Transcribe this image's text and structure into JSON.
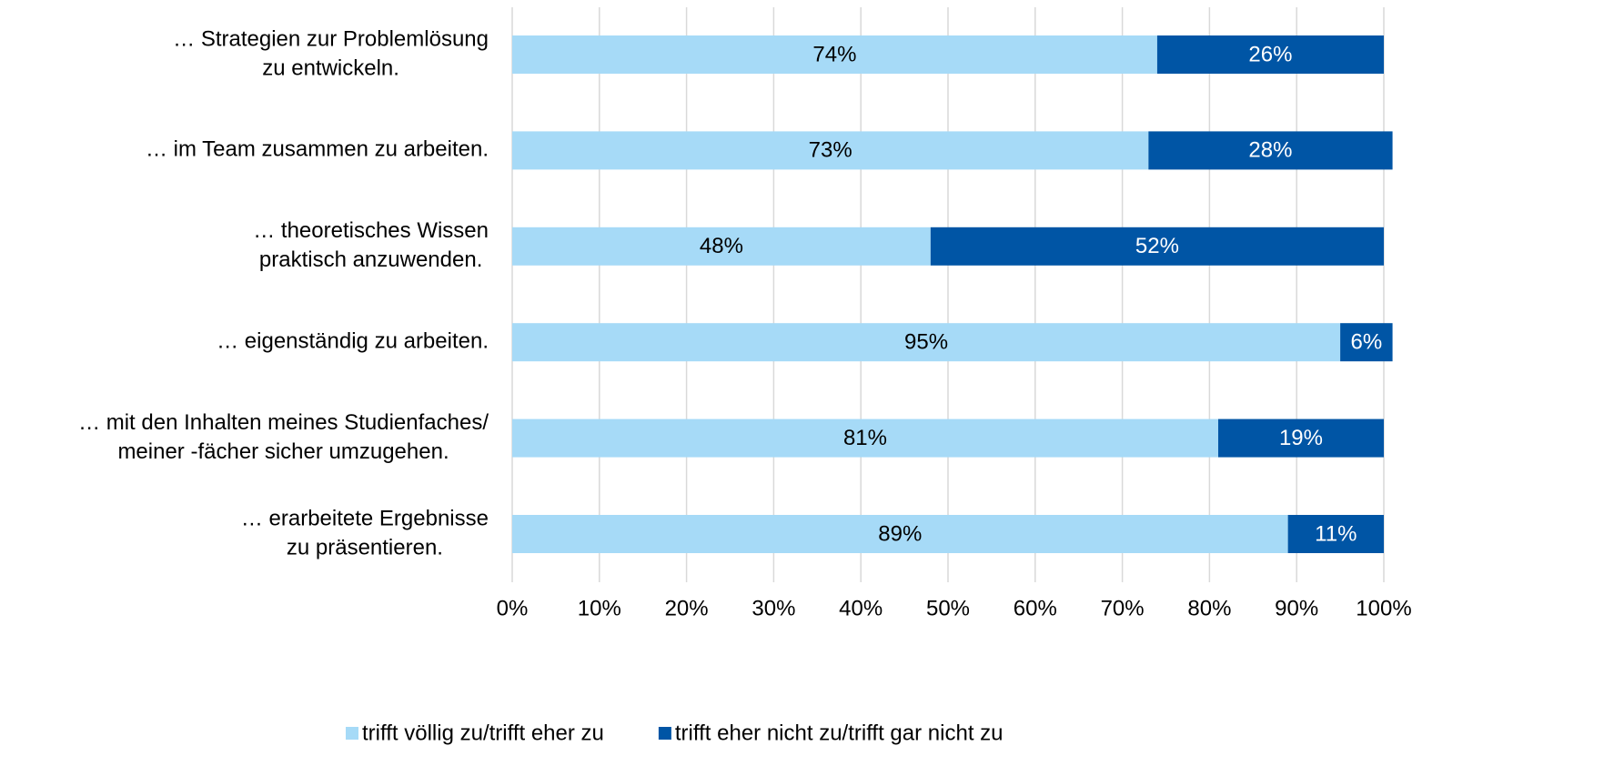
{
  "chart_data": {
    "type": "stacked_bar_horizontal",
    "categories": [
      [
        "… Strategien zur Problemlösung",
        "zu entwickeln."
      ],
      [
        "… im Team zusammen zu arbeiten."
      ],
      [
        "… theoretisches Wissen",
        "praktisch anzuwenden."
      ],
      [
        "… eigenständig zu arbeiten."
      ],
      [
        "… mit den Inhalten meines Studienfaches/",
        "meiner -fächer sicher umzugehen."
      ],
      [
        "… erarbeitete Ergebnisse",
        "zu präsentieren."
      ]
    ],
    "series": [
      {
        "name": "trifft völlig zu/trifft eher zu",
        "color": "#a6daf7",
        "label_color": "#000000",
        "values": [
          74,
          73,
          48,
          95,
          81,
          89
        ],
        "value_labels": [
          "74%",
          "73%",
          "48%",
          "95%",
          "81%",
          "89%"
        ]
      },
      {
        "name": "trifft eher nicht zu/trifft gar nicht zu",
        "color": "#0055a5",
        "label_color": "#ffffff",
        "values": [
          26,
          28,
          52,
          6,
          19,
          11
        ],
        "value_labels": [
          "26%",
          "28%",
          "52%",
          "6%",
          "19%",
          "11%"
        ]
      }
    ],
    "xlim": [
      0,
      100
    ],
    "xticks": [
      {
        "value": 0,
        "label": "0%"
      },
      {
        "value": 10,
        "label": "10%"
      },
      {
        "value": 20,
        "label": "20%"
      },
      {
        "value": 30,
        "label": "30%"
      },
      {
        "value": 40,
        "label": "40%"
      },
      {
        "value": 50,
        "label": "50%"
      },
      {
        "value": 60,
        "label": "60%"
      },
      {
        "value": 70,
        "label": "70%"
      },
      {
        "value": 80,
        "label": "80%"
      },
      {
        "value": 90,
        "label": "90%"
      },
      {
        "value": 100,
        "label": "100%"
      }
    ],
    "grid": true,
    "legend": "bottom"
  }
}
